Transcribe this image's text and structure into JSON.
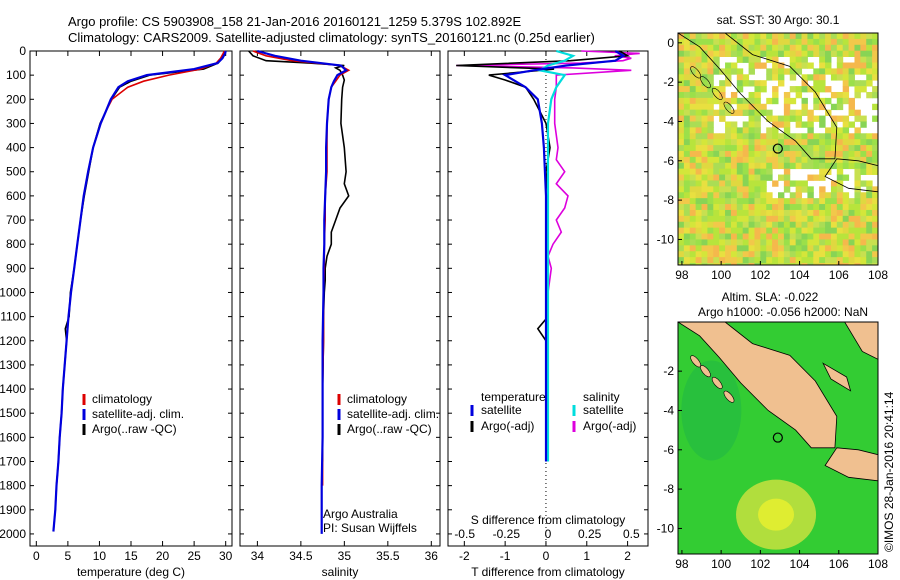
{
  "title_line1": "Argo profile: CS 5903908_158 21-Jan-2016 20160121_1259 5.379S 102.892E",
  "title_line2": "Climatology: CARS2009. Satellite-adjusted climatology: synTS_20160121.nc (0.25d earlier)",
  "colors": {
    "climatology": "#dd0000",
    "satellite": "#0000dd",
    "argo": "#000000",
    "salinity_satellite": "#00dddd",
    "salinity_argo": "#dd00dd",
    "land": "#f0c090",
    "ocean_sla": "#33cc33"
  },
  "chart_data": [
    {
      "type": "line",
      "id": "temperature",
      "xlabel": "temperature (deg C)",
      "ylabel": "",
      "xlim": [
        -1,
        31
      ],
      "ylim": [
        2050,
        0
      ],
      "xticks": [
        0,
        5,
        10,
        15,
        20,
        25,
        30
      ],
      "xticklabels": [
        "0",
        "5",
        "10",
        "15",
        "20",
        "25",
        "30"
      ],
      "yticks": [
        0,
        100,
        200,
        300,
        400,
        500,
        600,
        700,
        800,
        900,
        1000,
        1100,
        1200,
        1300,
        1400,
        1500,
        1600,
        1700,
        1800,
        1900,
        2000
      ],
      "yticklabels": [
        "0",
        "100",
        "200",
        "300",
        "400",
        "500",
        "600",
        "700",
        "800",
        "900",
        "1000",
        "1100",
        "1200",
        "1300",
        "1400",
        "1500",
        "1600",
        "1700",
        "1800",
        "1900",
        "2000"
      ],
      "legend": [
        "climatology",
        "satellite-adj. clim.",
        "Argo(..raw -QC)"
      ],
      "series": [
        {
          "name": "climatology",
          "depth": [
            0,
            10,
            30,
            50,
            75,
            100,
            125,
            150,
            200,
            250,
            300,
            400,
            500,
            600,
            700,
            800,
            900,
            1000,
            1100,
            1200,
            1300,
            1400,
            1500,
            1600,
            1700,
            1800
          ],
          "values": [
            29.8,
            29.6,
            29.2,
            28.5,
            26.0,
            21.0,
            17.0,
            14.5,
            12.0,
            11.0,
            10.2,
            9.0,
            8.2,
            7.5,
            7.0,
            6.5,
            6.0,
            5.5,
            5.1,
            4.8,
            4.5,
            4.2,
            4.0,
            3.7,
            3.5,
            3.2
          ]
        },
        {
          "name": "satellite-adj. clim.",
          "depth": [
            0,
            10,
            30,
            50,
            75,
            100,
            125,
            150,
            200,
            250,
            300,
            400,
            500,
            600,
            700,
            800,
            900,
            1000,
            1100,
            1200,
            1300,
            1400,
            1500,
            1600,
            1700,
            1800,
            1900,
            1990
          ],
          "values": [
            30.0,
            29.9,
            29.5,
            28.7,
            25.0,
            17.5,
            14.5,
            13.0,
            11.8,
            11.0,
            10.2,
            9.0,
            8.2,
            7.5,
            7.0,
            6.5,
            6.0,
            5.5,
            5.1,
            4.8,
            4.5,
            4.2,
            4.0,
            3.7,
            3.5,
            3.2,
            3.0,
            2.7
          ]
        },
        {
          "name": "Argo(..raw -QC)",
          "depth": [
            0,
            10,
            30,
            50,
            75,
            100,
            125,
            150,
            200,
            250,
            300,
            400,
            500,
            600,
            700,
            800,
            900,
            1000,
            1100,
            1150,
            1200,
            1300,
            1400,
            1500,
            1600,
            1700,
            1800,
            1900,
            1990
          ],
          "values": [
            29.9,
            29.8,
            29.4,
            28.8,
            26.5,
            18.0,
            15.0,
            13.2,
            11.9,
            11.0,
            10.1,
            9.0,
            8.3,
            7.6,
            7.0,
            6.5,
            6.0,
            5.4,
            5.2,
            4.6,
            4.8,
            4.5,
            4.2,
            4.0,
            3.7,
            3.5,
            3.2,
            3.0,
            2.7
          ]
        }
      ]
    },
    {
      "type": "line",
      "id": "salinity",
      "xlabel": "salinity",
      "xlim": [
        33.8,
        36.1
      ],
      "ylim": [
        2050,
        0
      ],
      "xticks": [
        34,
        34.5,
        35,
        35.5,
        36
      ],
      "xticklabels": [
        "34",
        "34.5",
        "35",
        "35.5",
        "36"
      ],
      "legend": [
        "climatology",
        "satellite-adj. clim.",
        "Argo(..raw -QC)"
      ],
      "annotations": [
        "Argo Australia",
        "PI: Susan Wijffels"
      ],
      "series": [
        {
          "name": "climatology",
          "depth": [
            0,
            20,
            40,
            60,
            80,
            100,
            125,
            150,
            200,
            300,
            400,
            500,
            600,
            700,
            800,
            900,
            1000,
            1200,
            1400,
            1600,
            1800
          ],
          "values": [
            33.95,
            34.1,
            34.4,
            34.95,
            35.05,
            34.95,
            34.9,
            34.85,
            34.82,
            34.8,
            34.8,
            34.8,
            34.78,
            34.78,
            34.77,
            34.77,
            34.76,
            34.76,
            34.75,
            34.75,
            34.75
          ]
        },
        {
          "name": "satellite-adj. clim.",
          "depth": [
            0,
            20,
            40,
            60,
            80,
            100,
            125,
            150,
            200,
            300,
            400,
            500,
            600,
            700,
            800,
            900,
            1000,
            1200,
            1400,
            1600,
            1800,
            2000
          ],
          "values": [
            34.0,
            34.2,
            34.5,
            34.96,
            35.02,
            34.92,
            34.88,
            34.85,
            34.82,
            34.8,
            34.79,
            34.79,
            34.78,
            34.77,
            34.77,
            34.76,
            34.76,
            34.75,
            34.75,
            34.75,
            34.74,
            34.74
          ]
        },
        {
          "name": "Argo(..raw -QC)",
          "depth": [
            0,
            20,
            40,
            50,
            60,
            70,
            80,
            100,
            120,
            150,
            200,
            300,
            400,
            500,
            550,
            600,
            650,
            700,
            750,
            800,
            850,
            900,
            950,
            1000,
            1100,
            1200,
            1400,
            1600,
            1700
          ],
          "values": [
            33.9,
            33.95,
            34.1,
            34.6,
            35.0,
            34.9,
            34.95,
            34.98,
            35.0,
            34.98,
            34.97,
            34.96,
            35.0,
            35.02,
            35.0,
            35.05,
            34.95,
            34.9,
            34.85,
            34.85,
            34.8,
            34.78,
            34.78,
            34.77,
            34.76,
            34.76,
            34.75,
            34.75,
            34.75
          ]
        }
      ]
    },
    {
      "type": "line",
      "id": "difference",
      "xlabel": "T difference from climatology",
      "xlabel_top": "S difference from climatology",
      "xlim": [
        -2.4,
        2.5
      ],
      "ylim": [
        2050,
        0
      ],
      "xticks": [
        -2,
        -1,
        0,
        1,
        2
      ],
      "xticklabels": [
        "-2",
        "-1",
        "0",
        "1",
        "2"
      ],
      "s_xticks": [
        -0.5,
        -0.25,
        0,
        0.25,
        0.5
      ],
      "s_xticklabels": [
        "-0.5",
        "-0.25",
        "0",
        "0.25",
        "0.5"
      ],
      "legend_temperature_title": "temperature",
      "legend_salinity_title": "salinity",
      "legend_items": [
        "satellite",
        "Argo(-adj)",
        "satellite",
        "Argo(-adj)"
      ],
      "series": [
        {
          "name": "temperature satellite",
          "depth": [
            0,
            20,
            40,
            60,
            80,
            100,
            150,
            200,
            300,
            400,
            600,
            800,
            1000,
            1200,
            1400,
            1600,
            1700
          ],
          "values": [
            1.7,
            1.9,
            1.7,
            0.5,
            -0.3,
            -1.0,
            -0.5,
            -0.2,
            -0.1,
            -0.05,
            0,
            0,
            0,
            0,
            0,
            0,
            0
          ]
        },
        {
          "name": "temperature Argo(-adj)",
          "depth": [
            0,
            20,
            40,
            60,
            75,
            100,
            120,
            150,
            200,
            300,
            400,
            500,
            600,
            700,
            800,
            900,
            1000,
            1100,
            1150,
            1200,
            1300,
            1400,
            1500,
            1600,
            1700
          ],
          "values": [
            1.8,
            2.0,
            0.6,
            -2.2,
            0.2,
            -1.4,
            -1.0,
            -0.5,
            -0.3,
            0.0,
            0.1,
            0.0,
            0.05,
            0.0,
            0.0,
            0.02,
            0.0,
            0.05,
            -0.2,
            0.0,
            0.0,
            0.0,
            0.0,
            0.0,
            0.0
          ]
        },
        {
          "name": "salinity satellite",
          "depth": [
            0,
            20,
            40,
            60,
            80,
            100,
            150,
            200,
            300,
            400,
            600,
            800,
            1000,
            1200,
            1400,
            1600,
            1700
          ],
          "values": [
            0.05,
            0.15,
            0.1,
            0.0,
            -0.05,
            0.1,
            0.05,
            0.02,
            0.0,
            0.0,
            0.0,
            0.0,
            0.0,
            0.0,
            0.0,
            0.0,
            0.0
          ]
        },
        {
          "name": "salinity Argo(-adj)",
          "depth": [
            0,
            10,
            20,
            30,
            40,
            50,
            60,
            70,
            80,
            100,
            150,
            200,
            300,
            400,
            450,
            500,
            550,
            600,
            650,
            700,
            750,
            800,
            850,
            900,
            1000
          ],
          "values": [
            0.2,
            0.55,
            0.4,
            0.5,
            0.45,
            0.2,
            -0.55,
            0.15,
            0.5,
            0.05,
            0.05,
            0.04,
            0.04,
            0.06,
            0.05,
            0.1,
            0.05,
            0.12,
            0.1,
            0.05,
            0.08,
            0.03,
            0.0,
            0.02,
            0.0
          ]
        }
      ]
    },
    {
      "type": "heatmap",
      "id": "sst-map",
      "title": "sat. SST: 30 Argo: 30.1",
      "xticklabels": [
        "98",
        "100",
        "102",
        "104",
        "106",
        "108"
      ],
      "yticklabels": [
        "0",
        "-2",
        "-4",
        "-6",
        "-8",
        "-10"
      ],
      "xlim": [
        97.8,
        108
      ],
      "ylim": [
        -11.3,
        0.5
      ],
      "argo_position": [
        102.892,
        -5.379
      ]
    },
    {
      "type": "heatmap",
      "id": "sla-map",
      "title_line1": "Altim. SLA: -0.022",
      "title_line2": "Argo h1000: -0.056 h2000: NaN",
      "xticklabels": [
        "98",
        "100",
        "102",
        "104",
        "106",
        "108"
      ],
      "yticklabels": [
        "-2",
        "-4",
        "-6",
        "-8",
        "-10"
      ],
      "xlim": [
        97.8,
        108
      ],
      "ylim": [
        -11.3,
        0.5
      ],
      "argo_position": [
        102.892,
        -5.379
      ],
      "credit": "©IMOS 28-Jan-2016 20:41:14"
    }
  ]
}
